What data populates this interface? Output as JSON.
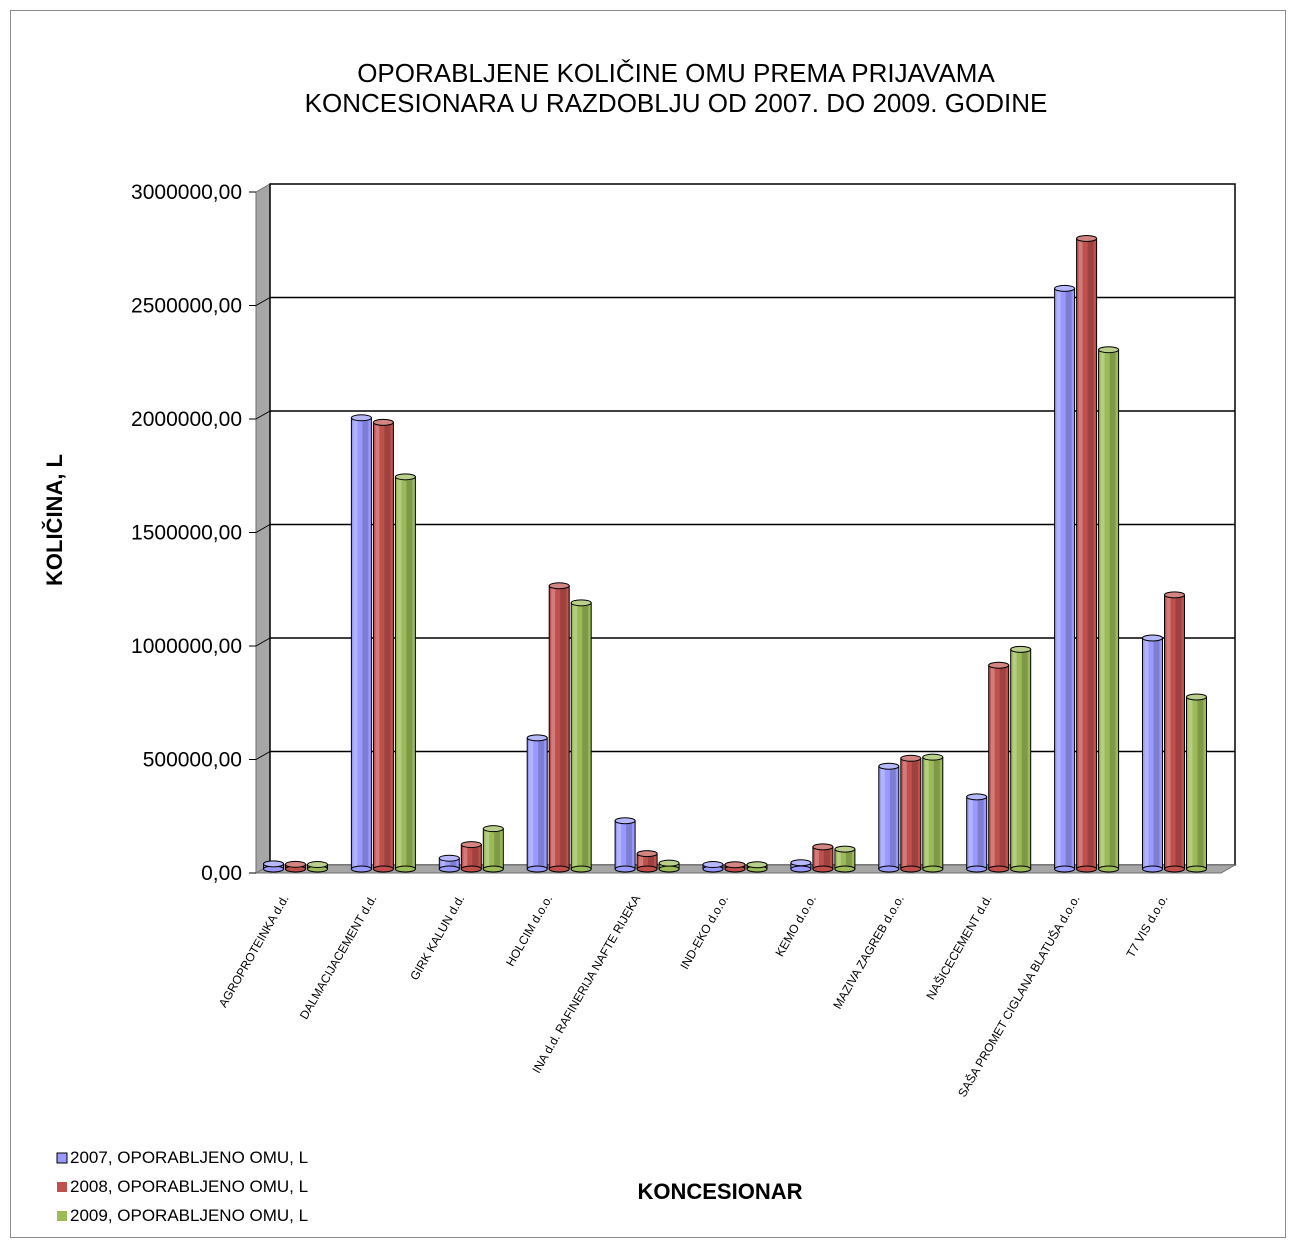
{
  "chart_data": {
    "type": "bar",
    "title_lines": [
      "OPORABLJENE KOLIČINE OMU PREMA PRIJAVAMA",
      "KONCESIONARA  U RAZDOBLJU OD 2007. DO 2009. GODINE"
    ],
    "xlabel": "KONCESIONAR",
    "ylabel": "KOLIČINA, L",
    "ylim": [
      0,
      3000000
    ],
    "y_ticks": [
      "0,00",
      "500000,00",
      "1000000,00",
      "1500000,00",
      "2000000,00",
      "2500000,00",
      "3000000,00"
    ],
    "grid": true,
    "legend_position": "bottom-left",
    "categories": [
      "AGROPROTEINKA d.d.",
      "DALMACIJACEMENT d.d.",
      "GIRK KALUN d.d.",
      "HOLCIM d.o.o.",
      "INA d.d. RAFINERIJA NAFTE RIJEKA",
      "IND-EKO d.o.o.",
      "KEMO d.o.o.",
      "MAZIVA ZAGREB d.o.o.",
      "NAŠICECEMENT d.d.",
      "SAŠA PROMET CIGLANA BLATUŠA d.o.o.",
      "T7 VIS d.o.o."
    ],
    "series": [
      {
        "name": "2007, OPORABLJENO OMU, L",
        "color": "#9999ff",
        "values": [
          5000,
          1970000,
          30000,
          560000,
          195000,
          2000,
          10000,
          435000,
          300000,
          2540000,
          1000000
        ]
      },
      {
        "name": "2008, OPORABLJENO OMU, L",
        "color": "#c0504d",
        "values": [
          3000,
          1950000,
          90000,
          1230000,
          50000,
          1000,
          80000,
          470000,
          880000,
          2760000,
          1190000
        ]
      },
      {
        "name": "2009, OPORABLJENO OMU, L",
        "color": "#9bbb59",
        "values": [
          2000,
          1710000,
          160000,
          1155000,
          8000,
          1000,
          70000,
          475000,
          950000,
          2270000,
          740000
        ]
      }
    ]
  }
}
